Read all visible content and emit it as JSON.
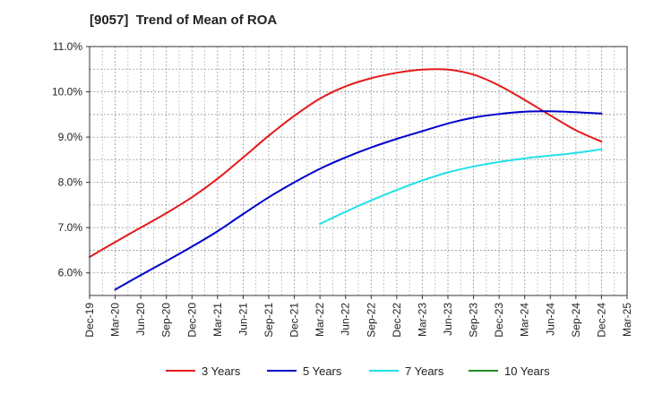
{
  "chart_data": {
    "type": "line",
    "title": "[9057]  Trend of Mean of ROA",
    "xlabel": "",
    "ylabel": "",
    "x": [
      "Dec-19",
      "Mar-20",
      "Jun-20",
      "Sep-20",
      "Dec-20",
      "Mar-21",
      "Jun-21",
      "Sep-21",
      "Dec-21",
      "Mar-22",
      "Jun-22",
      "Sep-22",
      "Dec-22",
      "Mar-23",
      "Jun-23",
      "Sep-23",
      "Dec-23",
      "Mar-24",
      "Jun-24",
      "Sep-24",
      "Dec-24",
      "Mar-25"
    ],
    "y_ticks": [
      "6.0%",
      "7.0%",
      "8.0%",
      "9.0%",
      "10.0%",
      "11.0%"
    ],
    "ylim": [
      5.5,
      11.0
    ],
    "grid": true,
    "legend_position": "bottom",
    "series": [
      {
        "name": "3 Years",
        "color": "#e31a1c",
        "values": [
          6.35,
          6.68,
          7.0,
          7.32,
          7.67,
          8.08,
          8.55,
          9.03,
          9.47,
          9.85,
          10.12,
          10.3,
          10.42,
          10.49,
          10.49,
          10.38,
          10.14,
          9.82,
          9.48,
          9.15,
          8.9,
          null
        ]
      },
      {
        "name": "5 Years",
        "color": "#0000cc",
        "values": [
          null,
          5.63,
          5.95,
          6.26,
          6.58,
          6.92,
          7.3,
          7.67,
          8.0,
          8.3,
          8.55,
          8.77,
          8.96,
          9.13,
          9.3,
          9.43,
          9.51,
          9.56,
          9.57,
          9.55,
          9.52,
          null
        ]
      },
      {
        "name": "7 Years",
        "color": "#22e0e8",
        "values": [
          null,
          null,
          null,
          null,
          null,
          null,
          null,
          null,
          null,
          7.08,
          7.35,
          7.6,
          7.83,
          8.04,
          8.22,
          8.35,
          8.45,
          8.53,
          8.59,
          8.65,
          8.73,
          null
        ]
      },
      {
        "name": "10 Years",
        "color": "#228b22",
        "values": [
          null,
          null,
          null,
          null,
          null,
          null,
          null,
          null,
          null,
          null,
          null,
          null,
          null,
          null,
          null,
          null,
          null,
          null,
          null,
          null,
          null,
          null
        ]
      }
    ]
  }
}
